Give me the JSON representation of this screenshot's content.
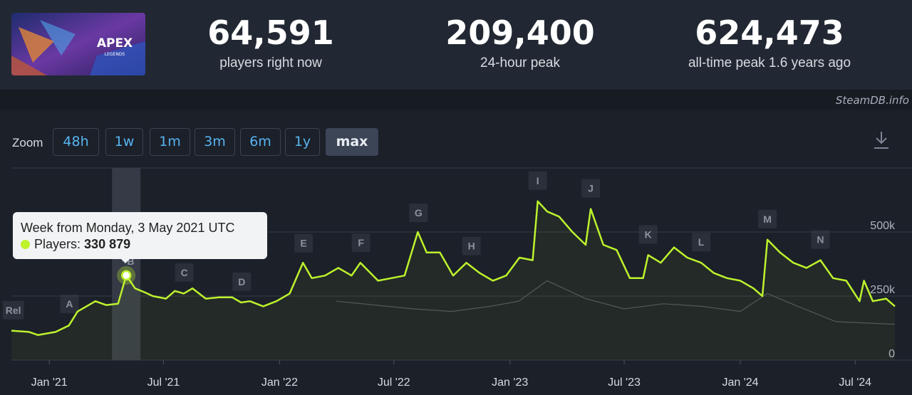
{
  "header": {
    "banner_text": "APEX",
    "banner_subtext": "LEGENDS",
    "stats": [
      {
        "value": "64,591",
        "label": "players right now"
      },
      {
        "value": "209,400",
        "label": "24-hour peak"
      },
      {
        "value": "624,473",
        "label": "all-time peak 1.6 years ago"
      }
    ]
  },
  "brand": "SteamDB.info",
  "zoom": {
    "label": "Zoom",
    "buttons": [
      "48h",
      "1w",
      "1m",
      "3m",
      "6m",
      "1y",
      "max"
    ],
    "active": "max"
  },
  "colors": {
    "players_line": "#bdf22c",
    "secondary_line": "#5a606b",
    "background": "#1b2029",
    "button_text": "#58b4f0"
  },
  "tooltip": {
    "title": "Week from Monday, 3 May 2021 UTC",
    "series_label": "Players:",
    "value": "330 879"
  },
  "chart_data": {
    "type": "line",
    "x_start": "2020-11-02",
    "x_end": "2024-09-02",
    "x_tick_labels": [
      "Jan '21",
      "Jul '21",
      "Jan '22",
      "Jul '22",
      "Jan '23",
      "Jul '23",
      "Jan '24",
      "Jul '24"
    ],
    "y_tick_labels": [
      "0",
      "250k",
      "500k"
    ],
    "ylim": [
      0,
      750000
    ],
    "grid": true,
    "highlight_date": "2021-05-03",
    "annotations": [
      {
        "label": "Rel",
        "date": "2020-11-05"
      },
      {
        "label": "A",
        "date": "2021-02-02"
      },
      {
        "label": "B",
        "date": "2021-05-10"
      },
      {
        "label": "C",
        "date": "2021-08-03"
      },
      {
        "label": "D",
        "date": "2021-11-02"
      },
      {
        "label": "E",
        "date": "2022-02-08"
      },
      {
        "label": "F",
        "date": "2022-05-10"
      },
      {
        "label": "G",
        "date": "2022-08-09"
      },
      {
        "label": "H",
        "date": "2022-11-01"
      },
      {
        "label": "I",
        "date": "2023-02-14"
      },
      {
        "label": "J",
        "date": "2023-05-09"
      },
      {
        "label": "K",
        "date": "2023-08-08"
      },
      {
        "label": "L",
        "date": "2023-10-31"
      },
      {
        "label": "M",
        "date": "2024-02-13"
      },
      {
        "label": "N",
        "date": "2024-05-07"
      }
    ],
    "series": [
      {
        "x": [
          "2020-11-02",
          "2020-11-30",
          "2020-12-14",
          "2021-01-11",
          "2021-02-01",
          "2021-02-15",
          "2021-03-01",
          "2021-03-15",
          "2021-04-01",
          "2021-04-20",
          "2021-05-03",
          "2021-05-17",
          "2021-06-01",
          "2021-06-14",
          "2021-07-05",
          "2021-07-19",
          "2021-08-02",
          "2021-08-16",
          "2021-09-06",
          "2021-09-27",
          "2021-10-18",
          "2021-11-01",
          "2021-11-15",
          "2021-12-06",
          "2021-12-27",
          "2022-01-17",
          "2022-02-07",
          "2022-02-21",
          "2022-03-14",
          "2022-04-04",
          "2022-04-25",
          "2022-05-09",
          "2022-06-06",
          "2022-06-27",
          "2022-07-18",
          "2022-08-08",
          "2022-08-22",
          "2022-09-12",
          "2022-10-03",
          "2022-10-24",
          "2022-11-14",
          "2022-12-05",
          "2022-12-26",
          "2023-01-16",
          "2023-02-06",
          "2023-02-14",
          "2023-03-01",
          "2023-03-20",
          "2023-04-10",
          "2023-05-01",
          "2023-05-09",
          "2023-05-29",
          "2023-06-19",
          "2023-07-10",
          "2023-07-31",
          "2023-08-08",
          "2023-08-28",
          "2023-09-18",
          "2023-10-09",
          "2023-10-31",
          "2023-11-20",
          "2023-12-11",
          "2024-01-01",
          "2024-01-22",
          "2024-02-05",
          "2024-02-13",
          "2024-03-04",
          "2024-03-25",
          "2024-04-15",
          "2024-05-07",
          "2024-05-27",
          "2024-06-17",
          "2024-07-08",
          "2024-07-15",
          "2024-07-29",
          "2024-08-19",
          "2024-09-02"
        ],
        "values": [
          115000,
          110000,
          98000,
          110000,
          135000,
          190000,
          210000,
          230000,
          215000,
          220000,
          330879,
          280000,
          265000,
          250000,
          240000,
          270000,
          260000,
          280000,
          240000,
          245000,
          245000,
          225000,
          230000,
          210000,
          230000,
          260000,
          380000,
          320000,
          330000,
          360000,
          330000,
          380000,
          310000,
          320000,
          330000,
          500000,
          420000,
          420000,
          330000,
          380000,
          340000,
          310000,
          330000,
          400000,
          390000,
          620000,
          580000,
          560000,
          500000,
          450000,
          590000,
          450000,
          430000,
          320000,
          320000,
          410000,
          380000,
          440000,
          400000,
          380000,
          340000,
          320000,
          310000,
          280000,
          250000,
          470000,
          420000,
          380000,
          360000,
          390000,
          320000,
          310000,
          230000,
          310000,
          230000,
          240000,
          210000
        ]
      },
      {
        "x": [
          "2022-04-01",
          "2022-06-01",
          "2022-08-01",
          "2022-10-01",
          "2022-12-01",
          "2023-01-15",
          "2023-03-01",
          "2023-05-01",
          "2023-07-01",
          "2023-09-01",
          "2023-11-01",
          "2024-01-01",
          "2024-02-13",
          "2024-04-01",
          "2024-06-01",
          "2024-09-02"
        ],
        "values": [
          230000,
          215000,
          200000,
          190000,
          210000,
          230000,
          310000,
          240000,
          200000,
          220000,
          210000,
          190000,
          260000,
          210000,
          150000,
          140000
        ]
      }
    ]
  }
}
